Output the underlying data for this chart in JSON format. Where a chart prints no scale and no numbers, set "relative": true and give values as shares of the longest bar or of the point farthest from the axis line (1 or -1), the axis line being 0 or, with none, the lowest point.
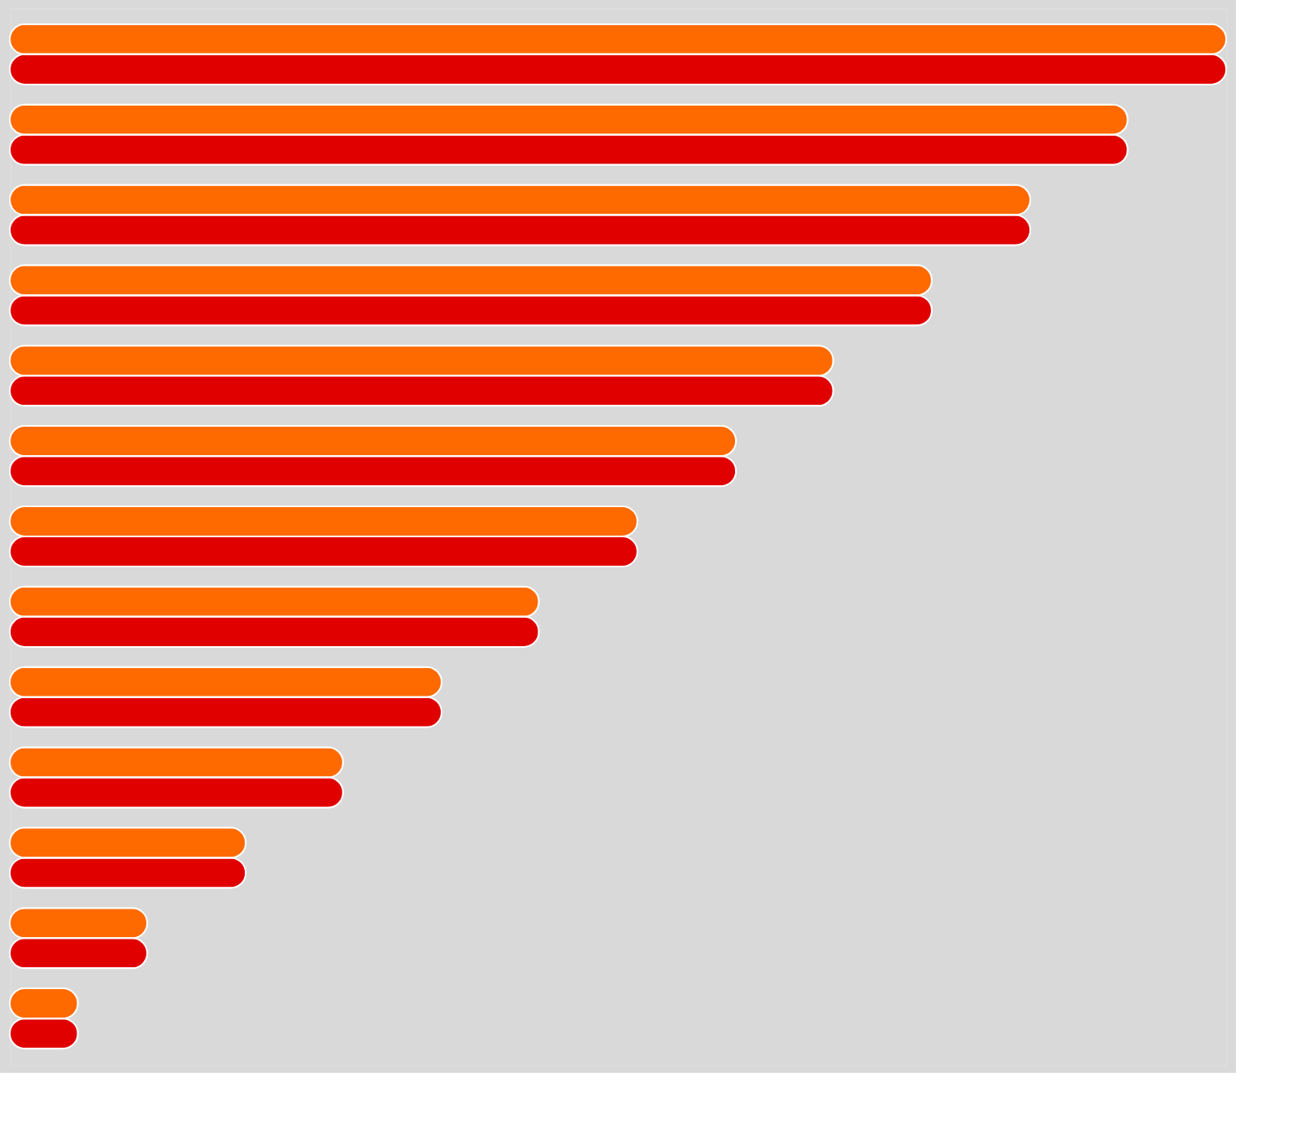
{
  "chart_data": {
    "type": "bar",
    "orientation": "horizontal",
    "relative": true,
    "categories": [
      null,
      null,
      null,
      null,
      null,
      null,
      null,
      null,
      null,
      null,
      null,
      null,
      null
    ],
    "series": [
      {
        "color": "#ff6a00",
        "values": [
          1,
          0.919,
          0.839,
          0.758,
          0.677,
          0.597,
          0.516,
          0.435,
          0.355,
          0.274,
          0.194,
          0.113,
          0.056
        ]
      },
      {
        "color": "#e00000",
        "values": [
          1,
          0.919,
          0.839,
          0.758,
          0.677,
          0.597,
          0.516,
          0.435,
          0.355,
          0.274,
          0.194,
          0.113,
          0.056
        ]
      }
    ]
  }
}
